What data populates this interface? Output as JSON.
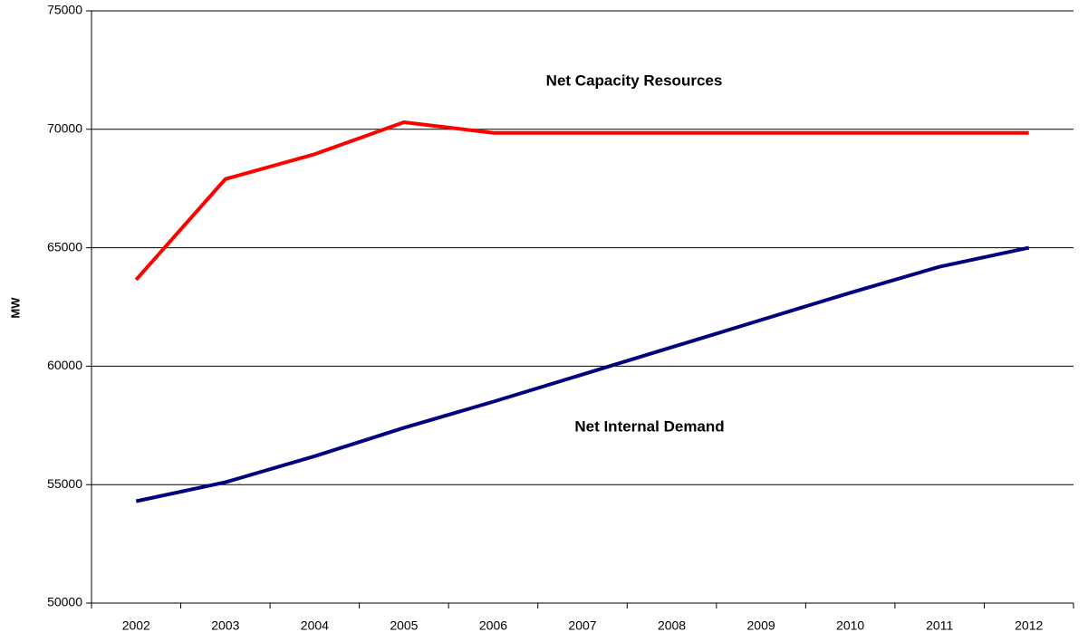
{
  "chart_data": {
    "type": "line",
    "y_label": "MW",
    "categories": [
      "2002",
      "2003",
      "2004",
      "2005",
      "2006",
      "2007",
      "2008",
      "2009",
      "2010",
      "2011",
      "2012"
    ],
    "series": [
      {
        "name": "Net Capacity Resources",
        "color": "#ff0000",
        "values": [
          63650,
          67900,
          68950,
          70300,
          69850,
          69850,
          69850,
          69850,
          69850,
          69850,
          69850
        ]
      },
      {
        "name": "Net Internal Demand",
        "color": "#000080",
        "values": [
          54300,
          55100,
          56200,
          57400,
          58500,
          59650,
          60800,
          61950,
          63100,
          64200,
          65000
        ]
      }
    ],
    "ylim": [
      50000,
      75000
    ],
    "yticks": [
      50000,
      55000,
      60000,
      65000,
      70000,
      75000
    ],
    "grid": true
  }
}
